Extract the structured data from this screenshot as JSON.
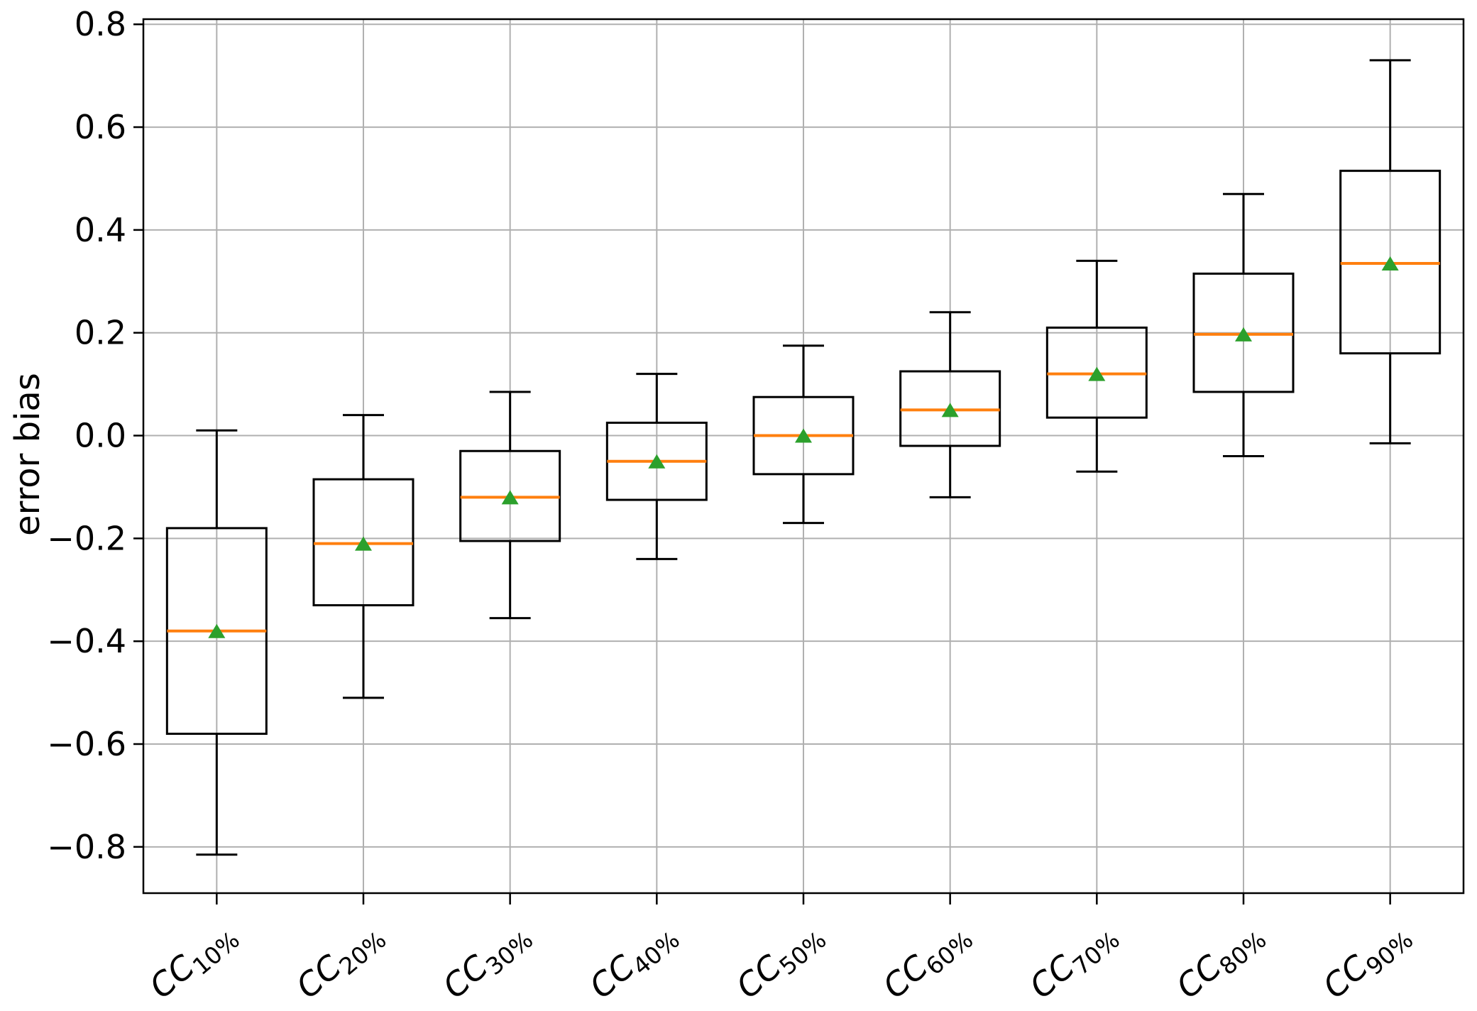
{
  "figure": {
    "background": "#ffffff"
  },
  "chart_data": {
    "type": "boxplot",
    "title": "",
    "xlabel": "",
    "ylabel": "error bias",
    "ylim": [
      -0.89,
      0.81
    ],
    "grid": true,
    "legend": "none",
    "orientation": "vertical",
    "ytick_values": [
      0.8,
      0.6,
      0.4,
      0.2,
      0.0,
      -0.2,
      -0.4,
      -0.6,
      -0.8
    ],
    "ytick_labels": [
      "0.8",
      "0.6",
      "0.4",
      "0.2",
      "0.0",
      "−0.2",
      "−0.4",
      "−0.6",
      "−0.8"
    ],
    "xtick_label_rotation_deg": 40,
    "categories": [
      {
        "prefix": "CC",
        "sub": "10%"
      },
      {
        "prefix": "CC",
        "sub": "20%"
      },
      {
        "prefix": "CC",
        "sub": "30%"
      },
      {
        "prefix": "CC",
        "sub": "40%"
      },
      {
        "prefix": "CC",
        "sub": "50%"
      },
      {
        "prefix": "CC",
        "sub": "60%"
      },
      {
        "prefix": "CC",
        "sub": "70%"
      },
      {
        "prefix": "CC",
        "sub": "80%"
      },
      {
        "prefix": "CC",
        "sub": "90%"
      }
    ],
    "series": [
      {
        "label": "CC 10%",
        "whislo": -0.815,
        "q1": -0.58,
        "med": -0.38,
        "q3": -0.18,
        "whishi": 0.01,
        "mean": -0.38
      },
      {
        "label": "CC 20%",
        "whislo": -0.51,
        "q1": -0.33,
        "med": -0.21,
        "q3": -0.085,
        "whishi": 0.04,
        "mean": -0.21
      },
      {
        "label": "CC 30%",
        "whislo": -0.355,
        "q1": -0.205,
        "med": -0.12,
        "q3": -0.03,
        "whishi": 0.085,
        "mean": -0.12
      },
      {
        "label": "CC 40%",
        "whislo": -0.24,
        "q1": -0.125,
        "med": -0.05,
        "q3": 0.025,
        "whishi": 0.12,
        "mean": -0.05
      },
      {
        "label": "CC 50%",
        "whislo": -0.17,
        "q1": -0.075,
        "med": 0.0,
        "q3": 0.075,
        "whishi": 0.175,
        "mean": 0.0
      },
      {
        "label": "CC 60%",
        "whislo": -0.12,
        "q1": -0.02,
        "med": 0.05,
        "q3": 0.125,
        "whishi": 0.24,
        "mean": 0.05
      },
      {
        "label": "CC 70%",
        "whislo": -0.07,
        "q1": 0.035,
        "med": 0.12,
        "q3": 0.21,
        "whishi": 0.34,
        "mean": 0.12
      },
      {
        "label": "CC 80%",
        "whislo": -0.04,
        "q1": 0.085,
        "med": 0.197,
        "q3": 0.315,
        "whishi": 0.47,
        "mean": 0.197
      },
      {
        "label": "CC 90%",
        "whislo": -0.015,
        "q1": 0.16,
        "med": 0.335,
        "q3": 0.515,
        "whishi": 0.73,
        "mean": 0.335
      }
    ],
    "colors": {
      "median": "#ff7f0e",
      "mean_marker": "#2ca02c",
      "box_line": "#000000",
      "grid_line": "#b0b0b0",
      "tick_text": "#000000"
    }
  }
}
